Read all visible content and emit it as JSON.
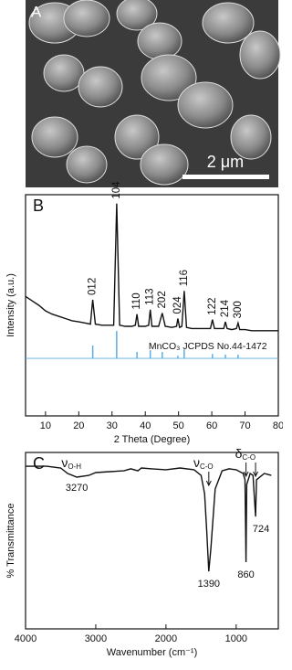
{
  "panel_a": {
    "label": "A",
    "scale_bar": "2 μm"
  },
  "chart_data": [
    {
      "type": "line",
      "label": "B",
      "xlabel": "2 Theta (Degree)",
      "ylabel": "Intensity (a.u.)",
      "x": [
        4,
        6,
        8,
        10,
        12,
        14,
        16,
        18,
        20,
        22,
        23.5,
        24.2,
        25,
        27,
        29,
        30.5,
        31.4,
        32.3,
        34,
        36,
        37,
        37.5,
        38,
        40,
        41,
        41.5,
        42,
        44,
        45.1,
        46,
        48,
        49.4,
        49.8,
        50.3,
        51,
        51.7,
        52.4,
        54,
        56,
        58,
        59.6,
        60.2,
        60.8,
        62,
        63.6,
        64.1,
        64.6,
        66,
        67.4,
        67.9,
        68.4,
        70,
        72,
        74,
        76,
        78,
        80
      ],
      "series": [
        {
          "color": "#111111",
          "values": [
            54,
            52,
            50,
            47.5,
            46,
            45,
            44,
            43,
            42.5,
            42,
            41.5,
            52.5,
            41.5,
            41,
            41,
            41,
            96,
            41,
            40.5,
            40.5,
            41,
            46,
            40.5,
            40.5,
            41,
            48,
            40.5,
            40.5,
            46.5,
            40.5,
            40,
            40.5,
            44,
            40,
            40.5,
            56.5,
            40,
            39.5,
            39.5,
            39.5,
            39.5,
            43.5,
            39.5,
            39.5,
            39.5,
            42.5,
            39.5,
            39,
            39.5,
            42,
            39,
            39,
            38.5,
            38.5,
            38.5,
            38.5,
            38.5
          ]
        }
      ],
      "xlim": [
        4,
        80
      ],
      "xticks": [
        10,
        20,
        30,
        40,
        50,
        60,
        70,
        80
      ],
      "ylim": [
        0,
        100
      ],
      "peak_labels": [
        {
          "text": "012",
          "x": 24.2
        },
        {
          "text": "104",
          "x": 31.4
        },
        {
          "text": "110",
          "x": 37.5
        },
        {
          "text": "113",
          "x": 41.5
        },
        {
          "text": "202",
          "x": 45.1
        },
        {
          "text": "024",
          "x": 49.8
        },
        {
          "text": "116",
          "x": 51.7
        },
        {
          "text": "122",
          "x": 60.2
        },
        {
          "text": "214",
          "x": 64.1
        },
        {
          "text": "300",
          "x": 67.9
        }
      ],
      "reference": {
        "name": "MnCO₃   JCPDS No.44-1472",
        "color": "#5aaee6",
        "base": 26,
        "x": [
          24.2,
          31.4,
          37.5,
          41.5,
          45.1,
          49.8,
          51.7,
          60.2,
          64.1,
          67.9
        ],
        "values": [
          31.8,
          38.4,
          28.9,
          29.7,
          28.9,
          27.2,
          30.1,
          28,
          27.7,
          27.7
        ]
      }
    },
    {
      "type": "line",
      "label": "C",
      "xlabel": "Wavenumber (cm⁻¹)",
      "ylabel": "% Transmittance",
      "x": [
        4000,
        3700,
        3500,
        3400,
        3270,
        3100,
        3000,
        2800,
        2600,
        2500,
        2400,
        2350,
        2200,
        2000,
        1800,
        1600,
        1500,
        1450,
        1420,
        1390,
        1360,
        1300,
        1200,
        1100,
        1000,
        900,
        875,
        860,
        850,
        800,
        760,
        740,
        724,
        710,
        600,
        500
      ],
      "series": [
        {
          "color": "#111111",
          "values": [
            92.2,
            92.2,
            91.2,
            88.1,
            86,
            87,
            88.6,
            89.1,
            89.6,
            90.7,
            89.6,
            91.2,
            90.7,
            90.2,
            91.2,
            90.2,
            87,
            76.7,
            56,
            32.6,
            45.6,
            79.3,
            89.6,
            90.7,
            90.2,
            88.1,
            84.5,
            37.8,
            81.9,
            88.1,
            87,
            74.1,
            63.7,
            84.5,
            88.1,
            87
          ]
        }
      ],
      "xlim": [
        4000,
        400
      ],
      "xticks": [
        4000,
        3000,
        2000,
        1000
      ],
      "ylim": [
        0,
        100
      ],
      "peak_labels": [
        {
          "text": "3270",
          "x": 3270
        },
        {
          "text": "1390",
          "x": 1390
        },
        {
          "text": "860",
          "x": 860
        },
        {
          "text": "724",
          "x": 724
        }
      ],
      "bands": [
        {
          "symbol": "ν",
          "sub": "O-H",
          "x": [
            3270
          ]
        },
        {
          "symbol": "ν",
          "sub": "C-O",
          "x": [
            1390
          ]
        },
        {
          "symbol": "δ",
          "sub": "C-O",
          "x": [
            860,
            724
          ]
        }
      ]
    }
  ]
}
